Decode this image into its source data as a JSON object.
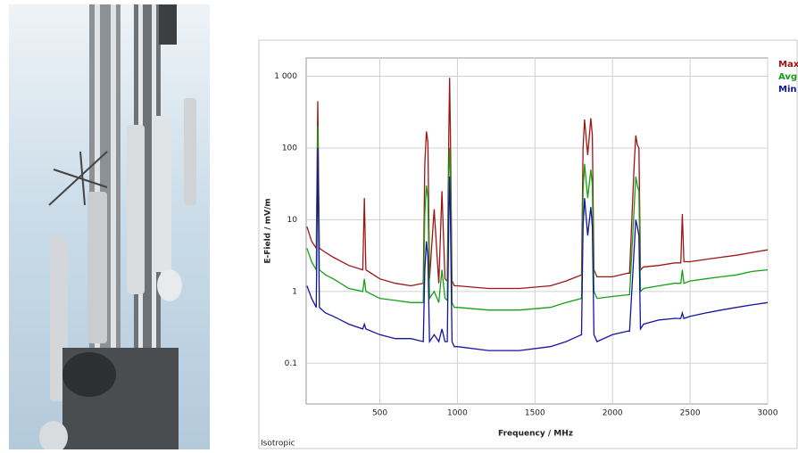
{
  "chart_data": {
    "type": "line",
    "xlabel": "Frequency / MHz",
    "ylabel": "E-Field / mV/m",
    "note": "Isotropic",
    "log_y": true,
    "grid": true,
    "legend": "upper right",
    "xlim": [
      25,
      3000
    ],
    "xticks": [
      500,
      1000,
      1500,
      2000,
      2500,
      3000
    ],
    "ylim": [
      0.027,
      1800
    ],
    "yticks": [
      0.1,
      1,
      10,
      100,
      {
        "value": 1000,
        "label": "1 000"
      }
    ],
    "x": [
      30,
      60,
      90,
      100,
      110,
      150,
      200,
      300,
      390,
      400,
      410,
      500,
      600,
      700,
      780,
      790,
      800,
      810,
      820,
      850,
      880,
      900,
      920,
      935,
      945,
      950,
      955,
      965,
      980,
      1000,
      1200,
      1400,
      1600,
      1700,
      1800,
      1810,
      1820,
      1840,
      1860,
      1870,
      1880,
      1900,
      2000,
      2100,
      2110,
      2140,
      2150,
      2160,
      2170,
      2180,
      2200,
      2300,
      2400,
      2440,
      2450,
      2460,
      2500,
      2600,
      2700,
      2800,
      2900,
      3000
    ],
    "series": [
      {
        "name": "Max",
        "color": "#a01414",
        "values": [
          8,
          5,
          4,
          450,
          4,
          3.5,
          3,
          2.3,
          2,
          20,
          2,
          1.5,
          1.3,
          1.2,
          1.3,
          60,
          170,
          120,
          1.5,
          14,
          1.3,
          25,
          1.5,
          1.4,
          200,
          950,
          150,
          1.4,
          1.2,
          1.2,
          1.1,
          1.1,
          1.2,
          1.4,
          1.7,
          100,
          250,
          80,
          260,
          150,
          2,
          1.6,
          1.6,
          1.8,
          1.8,
          60,
          150,
          110,
          100,
          2,
          2.2,
          2.3,
          2.5,
          2.5,
          12,
          2.6,
          2.6,
          2.8,
          3,
          3.2,
          3.5,
          3.8
        ]
      },
      {
        "name": "Avg",
        "color": "#14a014",
        "values": [
          4,
          2.6,
          2,
          200,
          2,
          1.7,
          1.5,
          1.1,
          1,
          1.5,
          1,
          0.8,
          0.75,
          0.7,
          0.7,
          12,
          30,
          20,
          0.8,
          1,
          0.7,
          2,
          0.8,
          0.75,
          50,
          100,
          40,
          0.7,
          0.6,
          0.6,
          0.55,
          0.55,
          0.6,
          0.7,
          0.8,
          25,
          60,
          20,
          50,
          30,
          1,
          0.8,
          0.85,
          0.9,
          0.9,
          15,
          40,
          30,
          25,
          1,
          1.1,
          1.2,
          1.3,
          1.3,
          2,
          1.3,
          1.4,
          1.5,
          1.6,
          1.7,
          1.9,
          2
        ]
      },
      {
        "name": "Min",
        "color": "#1414a0",
        "values": [
          1.2,
          0.8,
          0.6,
          100,
          0.6,
          0.5,
          0.45,
          0.35,
          0.3,
          0.35,
          0.3,
          0.25,
          0.22,
          0.22,
          0.2,
          2,
          5,
          3,
          0.2,
          0.25,
          0.2,
          0.3,
          0.2,
          0.2,
          15,
          40,
          10,
          0.2,
          0.17,
          0.17,
          0.15,
          0.15,
          0.17,
          0.2,
          0.25,
          8,
          20,
          6,
          15,
          8,
          0.25,
          0.2,
          0.25,
          0.28,
          0.28,
          4,
          10,
          8,
          6,
          0.3,
          0.35,
          0.4,
          0.42,
          0.42,
          0.5,
          0.42,
          0.45,
          0.5,
          0.55,
          0.6,
          0.65,
          0.7
        ]
      }
    ]
  }
}
